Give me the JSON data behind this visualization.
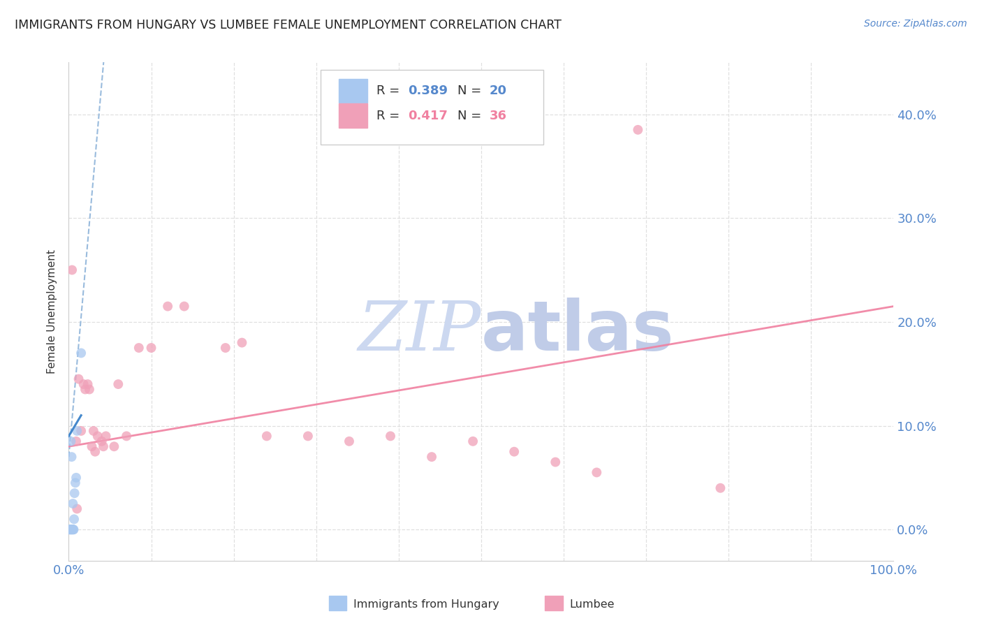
{
  "title": "IMMIGRANTS FROM HUNGARY VS LUMBEE FEMALE UNEMPLOYMENT CORRELATION CHART",
  "source": "Source: ZipAtlas.com",
  "ylabel": "Female Unemployment",
  "ytick_values": [
    0.0,
    10.0,
    20.0,
    30.0,
    40.0
  ],
  "ytick_labels": [
    "0.0%",
    "10.0%",
    "20.0%",
    "30.0%",
    "40.0%"
  ],
  "xlim": [
    0.0,
    100.0
  ],
  "ylim": [
    -3.0,
    45.0
  ],
  "hungary_scatter": [
    [
      0.1,
      0.0
    ],
    [
      0.15,
      0.0
    ],
    [
      0.2,
      0.0
    ],
    [
      0.25,
      0.0
    ],
    [
      0.3,
      0.0
    ],
    [
      0.35,
      0.0
    ],
    [
      0.4,
      0.0
    ],
    [
      0.45,
      0.0
    ],
    [
      0.5,
      0.0
    ],
    [
      0.55,
      0.0
    ],
    [
      0.6,
      0.0
    ],
    [
      0.65,
      1.0
    ],
    [
      0.5,
      2.5
    ],
    [
      0.8,
      4.5
    ],
    [
      0.35,
      7.0
    ],
    [
      1.0,
      9.5
    ],
    [
      0.25,
      8.5
    ],
    [
      1.5,
      17.0
    ],
    [
      0.9,
      5.0
    ],
    [
      0.7,
      3.5
    ]
  ],
  "lumbee_scatter": [
    [
      0.4,
      25.0
    ],
    [
      1.2,
      14.5
    ],
    [
      2.0,
      13.5
    ],
    [
      2.5,
      13.5
    ],
    [
      3.0,
      9.5
    ],
    [
      3.5,
      9.0
    ],
    [
      4.0,
      8.5
    ],
    [
      4.5,
      9.0
    ],
    [
      0.9,
      8.5
    ],
    [
      1.5,
      9.5
    ],
    [
      1.8,
      14.0
    ],
    [
      2.3,
      14.0
    ],
    [
      6.0,
      14.0
    ],
    [
      7.0,
      9.0
    ],
    [
      8.5,
      17.5
    ],
    [
      10.0,
      17.5
    ],
    [
      12.0,
      21.5
    ],
    [
      14.0,
      21.5
    ],
    [
      19.0,
      17.5
    ],
    [
      21.0,
      18.0
    ],
    [
      24.0,
      9.0
    ],
    [
      29.0,
      9.0
    ],
    [
      34.0,
      8.5
    ],
    [
      39.0,
      9.0
    ],
    [
      44.0,
      7.0
    ],
    [
      49.0,
      8.5
    ],
    [
      54.0,
      7.5
    ],
    [
      59.0,
      6.5
    ],
    [
      64.0,
      5.5
    ],
    [
      69.0,
      38.5
    ],
    [
      79.0,
      4.0
    ],
    [
      1.0,
      2.0
    ],
    [
      4.2,
      8.0
    ],
    [
      5.5,
      8.0
    ],
    [
      3.2,
      7.5
    ],
    [
      2.8,
      8.0
    ]
  ],
  "scatter_size": 100,
  "hungary_color": "#a8c8f0",
  "lumbee_color": "#f0a0b8",
  "hungary_trendline_color": "#99bbdd",
  "lumbee_trendline_color": "#f080a0",
  "hungary_short_line_color": "#4488cc",
  "grid_color": "#e0e0e0",
  "background_color": "#ffffff",
  "tick_label_color": "#5588cc",
  "title_color": "#222222",
  "title_fontsize": 12.5,
  "source_fontsize": 10,
  "axis_label_fontsize": 11,
  "legend_r_color_hungary": "#5588cc",
  "legend_n_color_hungary": "#5588cc",
  "legend_r_color_lumbee": "#f080a0",
  "legend_n_color_lumbee": "#f080a0",
  "watermark_zip_color": "#ccd8f0",
  "watermark_atlas_color": "#c0cce8"
}
